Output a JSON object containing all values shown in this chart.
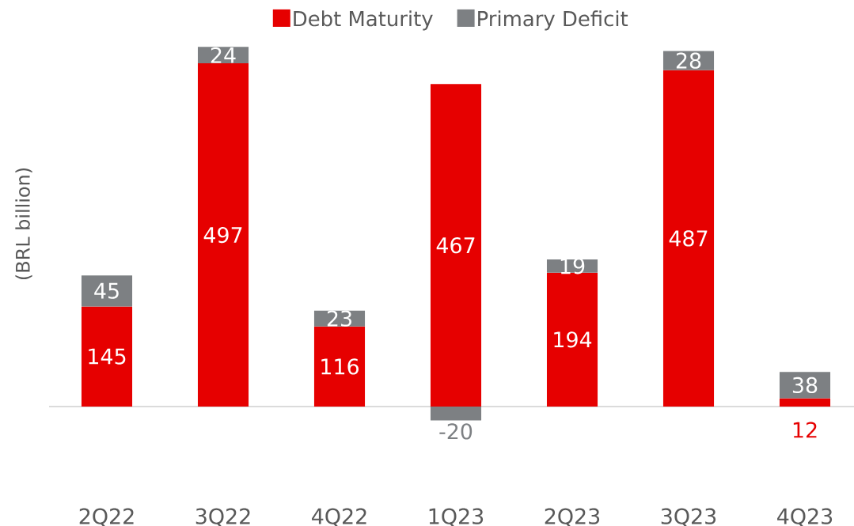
{
  "chart_data": {
    "type": "bar",
    "stacked": true,
    "ylabel": "(BRL billion)",
    "legend": "top",
    "data_labels": true,
    "categories": [
      "2Q22",
      "3Q22",
      "4Q22",
      "1Q23",
      "2Q23",
      "3Q23",
      "4Q23"
    ],
    "series": [
      {
        "name": "Debt Maturity",
        "color": "#e60000",
        "values": [
          145,
          497,
          116,
          467,
          194,
          487,
          12
        ]
      },
      {
        "name": "Primary Deficit",
        "color": "#7d8083",
        "values": [
          45,
          24,
          23,
          -20,
          19,
          28,
          38
        ]
      }
    ]
  }
}
